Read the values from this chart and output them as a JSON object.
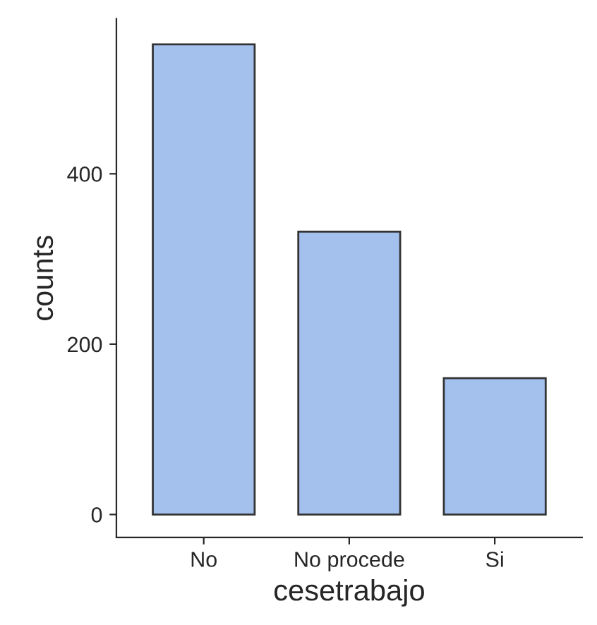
{
  "chart_data": {
    "type": "bar",
    "xlabel": "cesetrabajo",
    "ylabel": "counts",
    "categories": [
      "No",
      "No procede",
      "Si"
    ],
    "values": [
      552,
      332,
      160
    ],
    "color": "#a4c1ee",
    "ylim": [
      -27,
      582
    ],
    "yticks": [
      0,
      200,
      400
    ],
    "grid": false
  }
}
